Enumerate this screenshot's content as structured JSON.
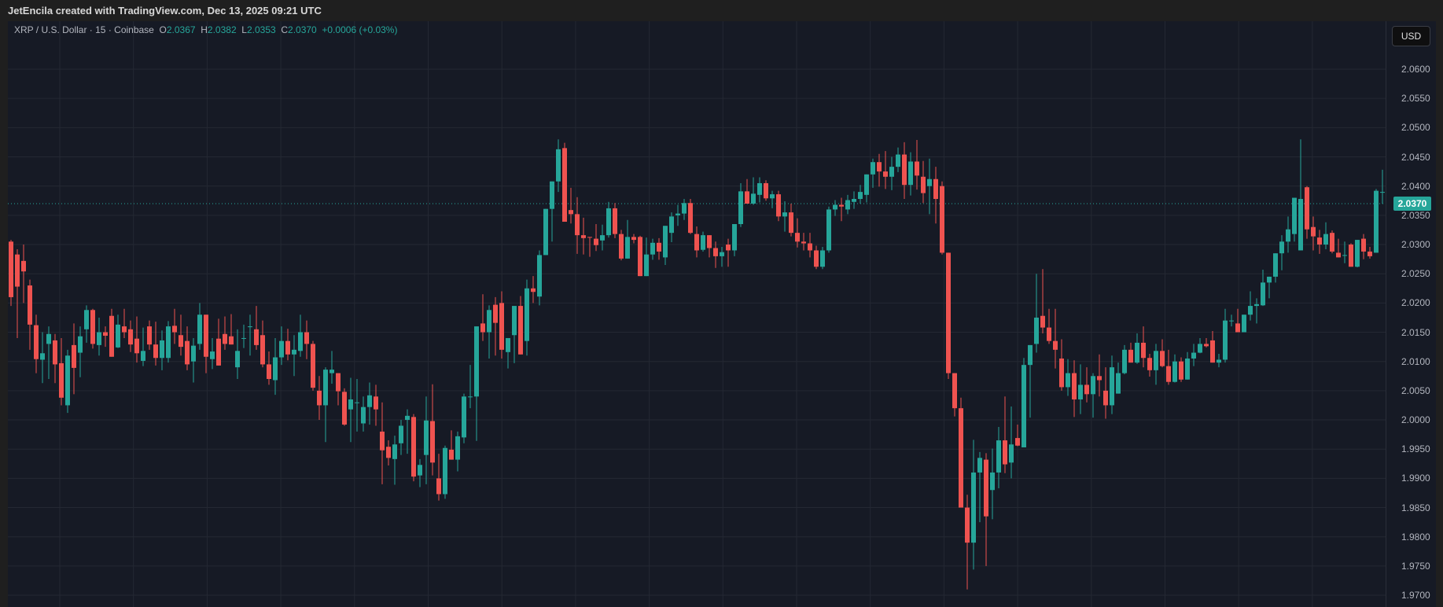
{
  "header": {
    "attribution": "JetEncila created with TradingView.com, Dec 13, 2025 09:21 UTC"
  },
  "legend": {
    "symbol": "XRP / U.S. Dollar · 15 · Coinbase",
    "o_label": "O",
    "o": "2.0367",
    "h_label": "H",
    "h": "2.0382",
    "l_label": "L",
    "l": "2.0353",
    "c_label": "C",
    "c": "2.0370",
    "change": "+0.0006 (+0.03%)"
  },
  "axis": {
    "currency": "USD",
    "current_price": "2.0370",
    "ticks": [
      "2.0600",
      "2.0550",
      "2.0500",
      "2.0450",
      "2.0400",
      "2.0350",
      "2.0300",
      "2.0250",
      "2.0200",
      "2.0150",
      "2.0100",
      "2.0050",
      "2.0000",
      "1.9950",
      "1.9900",
      "1.9850",
      "1.9800",
      "1.9750",
      "1.9700"
    ]
  },
  "colors": {
    "up": "#26a69a",
    "down": "#ef5350",
    "background": "#161a25",
    "grid": "#242833"
  },
  "chart_data": {
    "type": "candlestick",
    "title": "XRP / U.S. Dollar · 15 · Coinbase",
    "xlabel": "",
    "ylabel": "USD",
    "ylim": [
      1.969,
      2.063
    ],
    "grid": true,
    "last_price": 2.037,
    "candles": [
      [
        2.0305,
        2.0308,
        2.0195,
        2.021
      ],
      [
        2.0283,
        2.0292,
        2.014,
        2.0228
      ],
      [
        2.0272,
        2.03,
        2.02,
        2.0254
      ],
      [
        2.023,
        2.024,
        2.012,
        2.0163
      ],
      [
        2.0162,
        2.018,
        2.008,
        2.0104
      ],
      [
        2.0103,
        2.015,
        2.0063,
        2.0114
      ],
      [
        2.013,
        2.016,
        2.007,
        2.0147
      ],
      [
        2.0136,
        2.0147,
        2.0063,
        2.0095
      ],
      [
        2.0097,
        2.014,
        2.0025,
        2.0038
      ],
      [
        2.0025,
        2.012,
        2.0012,
        2.011
      ],
      [
        2.0128,
        2.0165,
        2.0044,
        2.0089
      ],
      [
        2.0115,
        2.016,
        2.0073,
        2.0143
      ],
      [
        2.0155,
        2.0196,
        2.0132,
        2.0188
      ],
      [
        2.0188,
        2.019,
        2.0122,
        2.013
      ],
      [
        2.0128,
        2.0175,
        2.011,
        2.015
      ],
      [
        2.015,
        2.016,
        2.0125,
        2.0144
      ],
      [
        2.0178,
        2.019,
        2.0108,
        2.0108
      ],
      [
        2.0124,
        2.018,
        2.0123,
        2.0163
      ],
      [
        2.016,
        2.019,
        2.014,
        2.015
      ],
      [
        2.0155,
        2.017,
        2.0116,
        2.0129
      ],
      [
        2.0139,
        2.0177,
        2.0098,
        2.0114
      ],
      [
        2.0101,
        2.0158,
        2.0092,
        2.0118
      ],
      [
        2.016,
        2.017,
        2.012,
        2.0129
      ],
      [
        2.0129,
        2.0168,
        2.0093,
        2.0106
      ],
      [
        2.0106,
        2.0153,
        2.0085,
        2.0136
      ],
      [
        2.0106,
        2.0169,
        2.0098,
        2.016
      ],
      [
        2.0161,
        2.019,
        2.013,
        2.015
      ],
      [
        2.0145,
        2.018,
        2.011,
        2.0125
      ],
      [
        2.0135,
        2.016,
        2.0085,
        2.0095
      ],
      [
        2.01,
        2.014,
        2.0064,
        2.0127
      ],
      [
        2.013,
        2.02,
        2.012,
        2.018
      ],
      [
        2.018,
        2.018,
        2.008,
        2.0108
      ],
      [
        2.0104,
        2.014,
        2.0087,
        2.0117
      ],
      [
        2.0139,
        2.0173,
        2.0098,
        2.0093
      ],
      [
        2.0147,
        2.0177,
        2.012,
        2.013
      ],
      [
        2.0143,
        2.0181,
        2.0129,
        2.0129
      ],
      [
        2.009,
        2.0155,
        2.007,
        2.0118
      ],
      [
        2.014,
        2.0163,
        2.0123,
        2.014
      ],
      [
        2.016,
        2.018,
        2.011,
        2.016
      ],
      [
        2.0155,
        2.0195,
        2.012,
        2.0128
      ],
      [
        2.0145,
        2.017,
        2.009,
        2.0095
      ],
      [
        2.0095,
        2.0117,
        2.006,
        2.007
      ],
      [
        2.0068,
        2.014,
        2.0043,
        2.0107
      ],
      [
        2.0107,
        2.016,
        2.0094,
        2.0135
      ],
      [
        2.0135,
        2.0156,
        2.0102,
        2.0112
      ],
      [
        2.0112,
        2.0145,
        2.0075,
        2.012
      ],
      [
        2.0118,
        2.018,
        2.0108,
        2.015
      ],
      [
        2.015,
        2.017,
        2.0104,
        2.013
      ],
      [
        2.013,
        2.0135,
        2.005,
        2.0055
      ],
      [
        2.005,
        2.0075,
        2.0,
        2.0025
      ],
      [
        2.0025,
        2.009,
        1.9962,
        2.0086
      ],
      [
        2.008,
        2.0118,
        2.0062,
        2.0086
      ],
      [
        2.008,
        2.007,
        2.0025,
        2.0049
      ],
      [
        2.0048,
        2.0054,
        1.999,
        1.9992
      ],
      [
        2.0018,
        2.0072,
        1.9962,
        2.0035
      ],
      [
        2.003,
        2.007,
        1.998,
        2.003
      ],
      [
        1.9994,
        2.004,
        1.998,
        2.0022
      ],
      [
        2.0022,
        2.0064,
        1.9992,
        2.0042
      ],
      [
        2.004,
        2.006,
        1.999,
        2.0018
      ],
      [
        1.998,
        2.003,
        1.989,
        1.9948
      ],
      [
        1.9954,
        1.9965,
        1.9922,
        1.9935
      ],
      [
        1.9933,
        1.9973,
        1.9889,
        1.9958
      ],
      [
        1.996,
        2.0,
        1.994,
        1.999
      ],
      [
        2.0,
        2.0018,
        1.9942,
        2.0007
      ],
      [
        2.0005,
        2.001,
        1.9895,
        1.9903
      ],
      [
        1.9905,
        1.9933,
        1.9885,
        1.9923
      ],
      [
        1.994,
        2.004,
        1.989,
        1.9999
      ],
      [
        1.9998,
        2.0061,
        1.9905,
        1.9927
      ],
      [
        1.99,
        1.9942,
        1.9862,
        1.9873
      ],
      [
        1.9873,
        1.9956,
        1.9865,
        1.9952
      ],
      [
        1.9949,
        1.9982,
        1.9932,
        1.9932
      ],
      [
        1.9932,
        1.998,
        1.9912,
        1.9972
      ],
      [
        1.997,
        2.0045,
        1.996,
        2.004
      ],
      [
        2.004,
        2.0094,
        2.002,
        2.004
      ],
      [
        2.004,
        2.01,
        1.9964,
        2.016
      ],
      [
        2.0165,
        2.0215,
        2.0135,
        2.015
      ],
      [
        2.015,
        2.0196,
        2.0105,
        2.0188
      ],
      [
        2.0197,
        2.021,
        2.011,
        2.0166
      ],
      [
        2.02,
        2.022,
        2.0105,
        2.012
      ],
      [
        2.0116,
        2.014,
        2.0088,
        2.014
      ],
      [
        2.0145,
        2.0195,
        2.0097,
        2.0195
      ],
      [
        2.0195,
        2.0212,
        2.0112,
        2.0112
      ],
      [
        2.0135,
        2.024,
        2.011,
        2.0225
      ],
      [
        2.0225,
        2.0246,
        2.02,
        2.0219
      ],
      [
        2.0211,
        2.029,
        2.0196,
        2.0282
      ],
      [
        2.0282,
        2.0356,
        2.0282,
        2.0361
      ],
      [
        2.0361,
        2.04,
        2.0305,
        2.0408
      ],
      [
        2.0408,
        2.048,
        2.039,
        2.0463
      ],
      [
        2.0465,
        2.0474,
        2.0341,
        2.0339
      ],
      [
        2.0359,
        2.0397,
        2.0336,
        2.0352
      ],
      [
        2.0352,
        2.0381,
        2.0284,
        2.0316
      ],
      [
        2.0316,
        2.0346,
        2.0283,
        2.0311
      ],
      [
        2.0313,
        2.0312,
        2.0279,
        2.0312
      ],
      [
        2.031,
        2.0335,
        2.0289,
        2.0299
      ],
      [
        2.0307,
        2.0334,
        2.029,
        2.0316
      ],
      [
        2.0316,
        2.0373,
        2.0312,
        2.0362
      ],
      [
        2.0362,
        2.0371,
        2.0311,
        2.0318
      ],
      [
        2.0318,
        2.0325,
        2.0273,
        2.0276
      ],
      [
        2.0276,
        2.0342,
        2.0282,
        2.0313
      ],
      [
        2.0313,
        2.0318,
        2.0302,
        2.0308
      ],
      [
        2.0313,
        2.0315,
        2.0246,
        2.0246
      ],
      [
        2.0246,
        2.0312,
        2.0246,
        2.0283
      ],
      [
        2.0283,
        2.031,
        2.0274,
        2.0303
      ],
      [
        2.0303,
        2.0311,
        2.0274,
        2.0288
      ],
      [
        2.0278,
        2.0322,
        2.0265,
        2.0332
      ],
      [
        2.032,
        2.0355,
        2.0304,
        2.0348
      ],
      [
        2.035,
        2.0368,
        2.0332,
        2.0353
      ],
      [
        2.0353,
        2.0378,
        2.0342,
        2.0371
      ],
      [
        2.0371,
        2.0378,
        2.0318,
        2.032
      ],
      [
        2.0318,
        2.0331,
        2.0278,
        2.029
      ],
      [
        2.0291,
        2.0322,
        2.0288,
        2.0316
      ],
      [
        2.0316,
        2.0314,
        2.0278,
        2.0294
      ],
      [
        2.0294,
        2.0305,
        2.026,
        2.028
      ],
      [
        2.028,
        2.0296,
        2.0262,
        2.0287
      ],
      [
        2.03,
        2.031,
        2.0262,
        2.029
      ],
      [
        2.029,
        2.0325,
        2.028,
        2.0335
      ],
      [
        2.0335,
        2.0405,
        2.033,
        2.0391
      ],
      [
        2.0391,
        2.0412,
        2.0371,
        2.037
      ],
      [
        2.037,
        2.0415,
        2.0368,
        2.0387
      ],
      [
        2.0385,
        2.0415,
        2.0372,
        2.0405
      ],
      [
        2.0405,
        2.041,
        2.0375,
        2.0379
      ],
      [
        2.0379,
        2.0392,
        2.0362,
        2.0386
      ],
      [
        2.0386,
        2.0392,
        2.034,
        2.0348
      ],
      [
        2.0348,
        2.0374,
        2.0322,
        2.0355
      ],
      [
        2.0355,
        2.037,
        2.0314,
        2.032
      ],
      [
        2.032,
        2.0345,
        2.0295,
        2.0305
      ],
      [
        2.0305,
        2.032,
        2.029,
        2.0302
      ],
      [
        2.0302,
        2.032,
        2.0278,
        2.029
      ],
      [
        2.029,
        2.0298,
        2.0258,
        2.0262
      ],
      [
        2.0262,
        2.0296,
        2.0258,
        2.029
      ],
      [
        2.029,
        2.0365,
        2.0286,
        2.036
      ],
      [
        2.036,
        2.0376,
        2.0349,
        2.0368
      ],
      [
        2.0368,
        2.038,
        2.034,
        2.0365
      ],
      [
        2.036,
        2.0385,
        2.0352,
        2.0376
      ],
      [
        2.0373,
        2.0391,
        2.0361,
        2.0378
      ],
      [
        2.0378,
        2.0402,
        2.037,
        2.039
      ],
      [
        2.0385,
        2.0412,
        2.0372,
        2.042
      ],
      [
        2.042,
        2.0447,
        2.0397,
        2.0441
      ],
      [
        2.0441,
        2.0455,
        2.0399,
        2.0425
      ],
      [
        2.0425,
        2.046,
        2.0395,
        2.0416
      ],
      [
        2.0416,
        2.045,
        2.0393,
        2.0433
      ],
      [
        2.0433,
        2.0466,
        2.0424,
        2.0454
      ],
      [
        2.0454,
        2.0475,
        2.0378,
        2.0402
      ],
      [
        2.0402,
        2.0458,
        2.0384,
        2.0442
      ],
      [
        2.0442,
        2.0479,
        2.0394,
        2.0418
      ],
      [
        2.0416,
        2.0443,
        2.0371,
        2.0388
      ],
      [
        2.04,
        2.0447,
        2.0352,
        2.0412
      ],
      [
        2.0412,
        2.0433,
        2.0336,
        2.0378
      ],
      [
        2.04,
        2.0408,
        2.0283,
        2.0286
      ],
      [
        2.0286,
        2.0285,
        2.007,
        2.008
      ],
      [
        2.008,
        2.0078,
        2.0006,
        2.002
      ],
      [
        2.002,
        2.0038,
        1.9875,
        1.985
      ],
      [
        1.985,
        1.9872,
        1.971,
        1.979
      ],
      [
        1.979,
        1.9966,
        1.9744,
        1.991
      ],
      [
        1.991,
        1.9945,
        1.9825,
        1.9935
      ],
      [
        1.9932,
        1.9943,
        1.975,
        1.9835
      ],
      [
        1.988,
        1.9951,
        1.983,
        1.991
      ],
      [
        1.991,
        1.9988,
        1.9883,
        1.9965
      ],
      [
        1.9965,
        2.004,
        1.9909,
        1.9924
      ],
      [
        1.9927,
        2.0023,
        1.99,
        1.9958
      ],
      [
        1.9969,
        1.9992,
        1.9955,
        1.9956
      ],
      [
        1.9953,
        2.0106,
        1.9974,
        2.0094
      ],
      [
        2.0094,
        2.011,
        2.0004,
        2.0128
      ],
      [
        2.013,
        2.025,
        2.0115,
        2.0175
      ],
      [
        2.0178,
        2.0258,
        2.0148,
        2.0158
      ],
      [
        2.0158,
        2.019,
        2.013,
        2.0135
      ],
      [
        2.0135,
        2.019,
        2.0088,
        2.012
      ],
      [
        2.0105,
        2.0138,
        2.005,
        2.0056
      ],
      [
        2.0056,
        2.0104,
        2.0041,
        2.008
      ],
      [
        2.008,
        2.0102,
        2.0005,
        2.0035
      ],
      [
        2.0035,
        2.0095,
        2.001,
        2.006
      ],
      [
        2.006,
        2.009,
        2.003,
        2.0044
      ],
      [
        2.0044,
        2.008,
        2.0004,
        2.0075
      ],
      [
        2.0075,
        2.0112,
        2.004,
        2.0068
      ],
      [
        2.005,
        2.009,
        2.0002,
        2.0025
      ],
      [
        2.0025,
        2.011,
        2.001,
        2.009
      ],
      [
        2.0045,
        2.0098,
        2.0045,
        2.008
      ],
      [
        2.008,
        2.0128,
        2.0078,
        2.012
      ],
      [
        2.012,
        2.0132,
        2.01,
        2.0098
      ],
      [
        2.0098,
        2.0148,
        2.0096,
        2.0132
      ],
      [
        2.0132,
        2.016,
        2.009,
        2.0106
      ],
      [
        2.0106,
        2.0113,
        2.0074,
        2.0085
      ],
      [
        2.0085,
        2.013,
        2.006,
        2.0118
      ],
      [
        2.0118,
        2.0138,
        2.009,
        2.0092
      ],
      [
        2.0092,
        2.012,
        2.006,
        2.0065
      ],
      [
        2.0065,
        2.0112,
        2.0064,
        2.01
      ],
      [
        2.01,
        2.0107,
        2.0065,
        2.0069
      ],
      [
        2.0069,
        2.0116,
        2.0069,
        2.0105
      ],
      [
        2.0105,
        2.013,
        2.0092,
        2.0115
      ],
      [
        2.0115,
        2.014,
        2.0114,
        2.013
      ],
      [
        2.013,
        2.014,
        2.0124,
        2.0126
      ],
      [
        2.0136,
        2.0152,
        2.0098,
        2.0098
      ],
      [
        2.0098,
        2.0113,
        2.009,
        2.0103
      ],
      [
        2.0103,
        2.019,
        2.0098,
        2.017
      ],
      [
        2.017,
        2.018,
        2.016,
        2.017
      ],
      [
        2.0165,
        2.019,
        2.015,
        2.015
      ],
      [
        2.015,
        2.0175,
        2.0155,
        2.018
      ],
      [
        2.018,
        2.022,
        2.017,
        2.0195
      ],
      [
        2.0195,
        2.0208,
        2.0165,
        2.0198
      ],
      [
        2.0196,
        2.0257,
        2.0195,
        2.0235
      ],
      [
        2.0235,
        2.0245,
        2.0208,
        2.0245
      ],
      [
        2.0245,
        2.0267,
        2.0235,
        2.0285
      ],
      [
        2.0285,
        2.0316,
        2.0256,
        2.0305
      ],
      [
        2.0305,
        2.0348,
        2.0286,
        2.0326
      ],
      [
        2.0318,
        2.0358,
        2.0305,
        2.038
      ],
      [
        2.029,
        2.048,
        2.029,
        2.0378
      ],
      [
        2.0398,
        2.04,
        2.031,
        2.0326
      ],
      [
        2.033,
        2.0348,
        2.029,
        2.0314
      ],
      [
        2.0312,
        2.0325,
        2.0284,
        2.03
      ],
      [
        2.03,
        2.0338,
        2.0292,
        2.0318
      ],
      [
        2.032,
        2.0324,
        2.0285,
        2.0288
      ],
      [
        2.0286,
        2.031,
        2.028,
        2.0278
      ],
      [
        2.0282,
        2.0305,
        2.0268,
        2.0282
      ],
      [
        2.03,
        2.0302,
        2.0266,
        2.0262
      ],
      [
        2.0262,
        2.0305,
        2.0261,
        2.0308
      ],
      [
        2.031,
        2.0318,
        2.0275,
        2.0288
      ],
      [
        2.0288,
        2.0296,
        2.0276,
        2.028
      ],
      [
        2.0286,
        2.0395,
        2.0286,
        2.0392
      ],
      [
        2.039,
        2.0428,
        2.037,
        2.039
      ],
      [
        2.0392,
        2.04,
        2.037,
        2.039
      ],
      [
        2.0396,
        2.042,
        2.0356,
        2.0367
      ],
      [
        2.0362,
        2.038,
        2.0359,
        2.0365
      ],
      [
        2.0367,
        2.0382,
        2.0353,
        2.037
      ]
    ]
  }
}
